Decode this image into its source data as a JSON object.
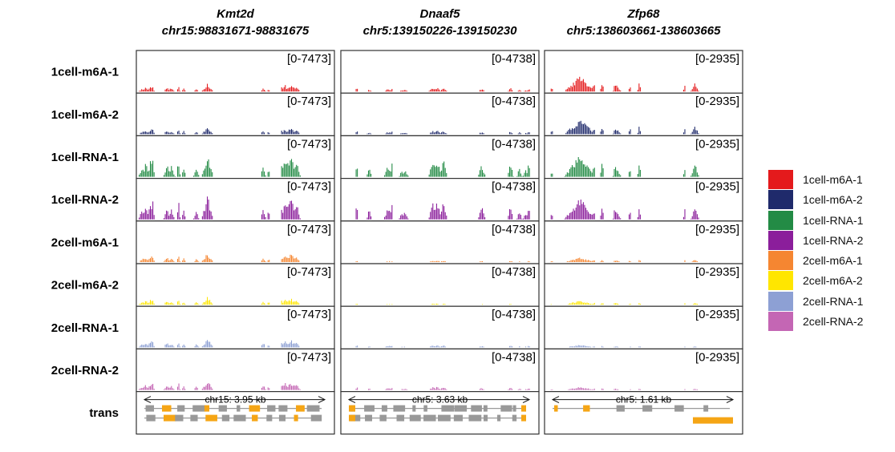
{
  "chart_data": {
    "type": "area",
    "columns": [
      {
        "gene": "Kmt2d",
        "locus": "chr15:98831671-98831675",
        "range": "[0-7473]",
        "scale_text": "chr15: 3.95 kb",
        "ymax": 7473,
        "window_bins": 120,
        "seed": 11
      },
      {
        "gene": "Dnaaf5",
        "locus": "chr5:139150226-139150230",
        "range": "[0-4738]",
        "scale_text": "chr5: 3.63 kb",
        "ymax": 4738,
        "window_bins": 120,
        "seed": 23
      },
      {
        "gene": "Zfp68",
        "locus": "chr5:138603661-138603665",
        "range": "[0-2935]",
        "scale_text": "chr5: 1.61 kb",
        "ymax": 2935,
        "window_bins": 120,
        "seed": 37
      }
    ],
    "tracks": [
      {
        "name": "1cell-m6A-1",
        "color": "#E41A1C",
        "scale": [
          0.3,
          0.2,
          0.62
        ]
      },
      {
        "name": "1cell-m6A-2",
        "color": "#1F2A6B",
        "scale": [
          0.28,
          0.18,
          0.6
        ]
      },
      {
        "name": "1cell-RNA-1",
        "color": "#238B45",
        "scale": [
          0.95,
          0.9,
          0.95
        ]
      },
      {
        "name": "1cell-RNA-2",
        "color": "#8B1E9B",
        "scale": [
          0.98,
          0.92,
          0.9
        ]
      },
      {
        "name": "2cell-m6A-1",
        "color": "#F58631",
        "scale": [
          0.36,
          0.08,
          0.18
        ]
      },
      {
        "name": "2cell-m6A-2",
        "color": "#FFE600",
        "scale": [
          0.3,
          0.06,
          0.16
        ]
      },
      {
        "name": "2cell-RNA-1",
        "color": "#8DA0D4",
        "scale": [
          0.35,
          0.12,
          0.1
        ]
      },
      {
        "name": "2cell-RNA-2",
        "color": "#C466B4",
        "scale": [
          0.38,
          0.16,
          0.12
        ]
      }
    ],
    "annotation_track": {
      "name": "trans"
    },
    "gene_model_colors": {
      "exon": "#F5A515",
      "intron": "#999999"
    }
  }
}
